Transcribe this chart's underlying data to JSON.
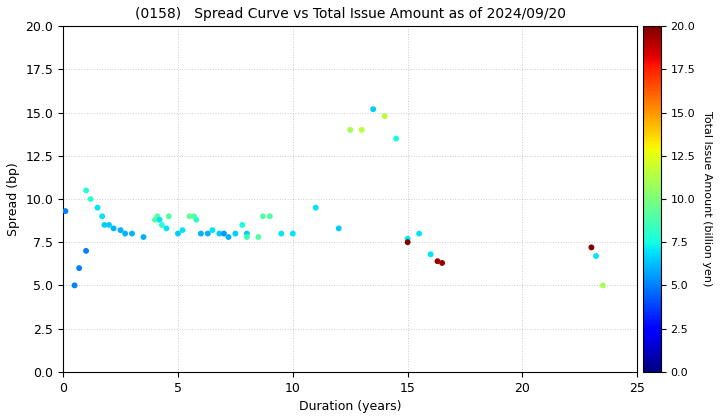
{
  "title": "(0158)   Spread Curve vs Total Issue Amount as of 2024/09/20",
  "xlabel": "Duration (years)",
  "ylabel": "Spread (bp)",
  "colorbar_label": "Total Issue Amount (billion yen)",
  "xlim": [
    0,
    25
  ],
  "ylim": [
    0.0,
    20.0
  ],
  "colorbar_min": 0.0,
  "colorbar_max": 20.0,
  "points": [
    {
      "duration": 0.1,
      "spread": 9.3,
      "amount": 5.0
    },
    {
      "duration": 0.5,
      "spread": 5.0,
      "amount": 5.0
    },
    {
      "duration": 0.7,
      "spread": 6.0,
      "amount": 5.0
    },
    {
      "duration": 1.0,
      "spread": 7.0,
      "amount": 5.0
    },
    {
      "duration": 1.0,
      "spread": 10.5,
      "amount": 8.0
    },
    {
      "duration": 1.2,
      "spread": 10.0,
      "amount": 8.0
    },
    {
      "duration": 1.5,
      "spread": 9.5,
      "amount": 7.0
    },
    {
      "duration": 1.7,
      "spread": 9.0,
      "amount": 7.0
    },
    {
      "duration": 1.8,
      "spread": 8.5,
      "amount": 6.5
    },
    {
      "duration": 2.0,
      "spread": 8.5,
      "amount": 6.5
    },
    {
      "duration": 2.2,
      "spread": 8.3,
      "amount": 6.0
    },
    {
      "duration": 2.5,
      "spread": 8.2,
      "amount": 6.0
    },
    {
      "duration": 2.7,
      "spread": 8.0,
      "amount": 6.0
    },
    {
      "duration": 3.0,
      "spread": 8.0,
      "amount": 6.0
    },
    {
      "duration": 3.5,
      "spread": 7.8,
      "amount": 6.0
    },
    {
      "duration": 4.0,
      "spread": 8.8,
      "amount": 9.0
    },
    {
      "duration": 4.1,
      "spread": 9.0,
      "amount": 9.0
    },
    {
      "duration": 4.2,
      "spread": 8.8,
      "amount": 7.0
    },
    {
      "duration": 4.3,
      "spread": 8.5,
      "amount": 8.0
    },
    {
      "duration": 4.5,
      "spread": 8.3,
      "amount": 7.0
    },
    {
      "duration": 4.6,
      "spread": 9.0,
      "amount": 9.0
    },
    {
      "duration": 5.0,
      "spread": 8.0,
      "amount": 6.5
    },
    {
      "duration": 5.2,
      "spread": 8.2,
      "amount": 7.0
    },
    {
      "duration": 5.5,
      "spread": 9.0,
      "amount": 9.5
    },
    {
      "duration": 5.7,
      "spread": 9.0,
      "amount": 9.0
    },
    {
      "duration": 5.8,
      "spread": 8.8,
      "amount": 8.0
    },
    {
      "duration": 6.0,
      "spread": 8.0,
      "amount": 6.0
    },
    {
      "duration": 6.3,
      "spread": 8.0,
      "amount": 6.0
    },
    {
      "duration": 6.5,
      "spread": 8.2,
      "amount": 7.0
    },
    {
      "duration": 6.8,
      "spread": 8.0,
      "amount": 6.5
    },
    {
      "duration": 7.0,
      "spread": 8.0,
      "amount": 5.5
    },
    {
      "duration": 7.2,
      "spread": 7.8,
      "amount": 6.0
    },
    {
      "duration": 7.5,
      "spread": 8.0,
      "amount": 6.5
    },
    {
      "duration": 7.8,
      "spread": 8.5,
      "amount": 7.5
    },
    {
      "duration": 8.0,
      "spread": 8.0,
      "amount": 6.5
    },
    {
      "duration": 8.0,
      "spread": 7.8,
      "amount": 8.5
    },
    {
      "duration": 8.5,
      "spread": 7.8,
      "amount": 9.0
    },
    {
      "duration": 8.7,
      "spread": 9.0,
      "amount": 9.0
    },
    {
      "duration": 9.0,
      "spread": 9.0,
      "amount": 9.0
    },
    {
      "duration": 9.5,
      "spread": 8.0,
      "amount": 7.0
    },
    {
      "duration": 10.0,
      "spread": 8.0,
      "amount": 7.0
    },
    {
      "duration": 11.0,
      "spread": 9.5,
      "amount": 7.0
    },
    {
      "duration": 12.0,
      "spread": 8.3,
      "amount": 6.5
    },
    {
      "duration": 12.5,
      "spread": 14.0,
      "amount": 11.0
    },
    {
      "duration": 13.0,
      "spread": 14.0,
      "amount": 11.5
    },
    {
      "duration": 13.5,
      "spread": 15.2,
      "amount": 6.5
    },
    {
      "duration": 14.0,
      "spread": 14.8,
      "amount": 11.5
    },
    {
      "duration": 14.5,
      "spread": 13.5,
      "amount": 7.5
    },
    {
      "duration": 15.0,
      "spread": 7.7,
      "amount": 7.0
    },
    {
      "duration": 15.0,
      "spread": 7.5,
      "amount": 20.0
    },
    {
      "duration": 15.5,
      "spread": 8.0,
      "amount": 7.0
    },
    {
      "duration": 16.0,
      "spread": 6.8,
      "amount": 7.0
    },
    {
      "duration": 16.3,
      "spread": 6.4,
      "amount": 19.5
    },
    {
      "duration": 16.5,
      "spread": 6.3,
      "amount": 19.5
    },
    {
      "duration": 23.0,
      "spread": 7.2,
      "amount": 20.0
    },
    {
      "duration": 23.2,
      "spread": 6.7,
      "amount": 7.0
    },
    {
      "duration": 23.5,
      "spread": 5.0,
      "amount": 11.0
    }
  ],
  "fig_width": 7.2,
  "fig_height": 4.2,
  "dpi": 100,
  "scatter_size": 18,
  "title_fontsize": 10,
  "axis_fontsize": 9,
  "colorbar_fontsize": 8,
  "background_color": "#ffffff",
  "grid_color": "#aaaaaa",
  "grid_alpha": 0.6,
  "xticks": [
    0,
    5,
    10,
    15,
    20,
    25
  ],
  "yticks": [
    0.0,
    2.5,
    5.0,
    7.5,
    10.0,
    12.5,
    15.0,
    17.5,
    20.0
  ],
  "cbar_ticks": [
    0.0,
    2.5,
    5.0,
    7.5,
    10.0,
    12.5,
    15.0,
    17.5,
    20.0
  ]
}
